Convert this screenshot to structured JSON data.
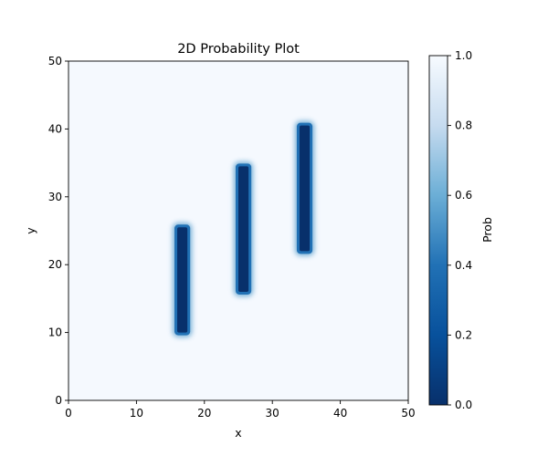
{
  "chart_data": {
    "type": "heatmap",
    "title": "2D Probability Plot",
    "xlabel": "x",
    "ylabel": "y",
    "xlim": [
      0,
      50
    ],
    "ylim": [
      0,
      50
    ],
    "xticks": [
      0,
      10,
      20,
      30,
      40,
      50
    ],
    "yticks": [
      0,
      10,
      20,
      30,
      40,
      50
    ],
    "background_value": 0.98,
    "regions": [
      {
        "x_min": 16.0,
        "x_max": 17.5,
        "y_min": 10.0,
        "y_max": 25.5,
        "value": 0.0
      },
      {
        "x_min": 25.0,
        "x_max": 26.5,
        "y_min": 16.0,
        "y_max": 34.5,
        "value": 0.0
      },
      {
        "x_min": 34.0,
        "x_max": 35.5,
        "y_min": 22.0,
        "y_max": 40.5,
        "value": 0.0
      }
    ],
    "colorbar": {
      "label": "Prob",
      "range": [
        0,
        1
      ],
      "ticks": [
        "0.0",
        "0.2",
        "0.4",
        "0.6",
        "0.8",
        "1.0"
      ],
      "colormap": "Blues_r",
      "color_low": "#08306b",
      "color_mid": "#4292c6",
      "color_high": "#f7fbff"
    },
    "grid": false
  }
}
